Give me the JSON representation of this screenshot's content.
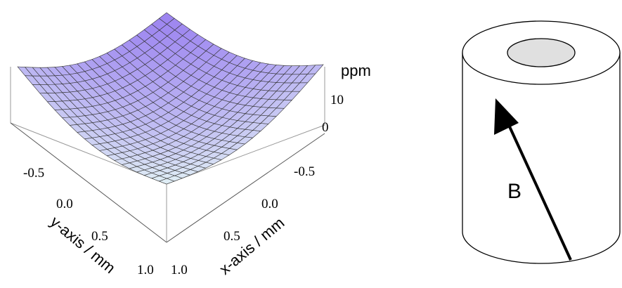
{
  "surface_plot": {
    "z_unit": "ppm",
    "z_ticks": [
      "10",
      "0"
    ],
    "y_axis": {
      "label": "y-axis / mm",
      "ticks": [
        "-0.5",
        "0.0",
        "0.5",
        "1.0"
      ]
    },
    "x_axis": {
      "label": "x-axis / mm",
      "ticks": [
        "-0.5",
        "0.0",
        "0.5",
        "1.0"
      ]
    }
  },
  "diagram": {
    "field_label": "B"
  }
}
